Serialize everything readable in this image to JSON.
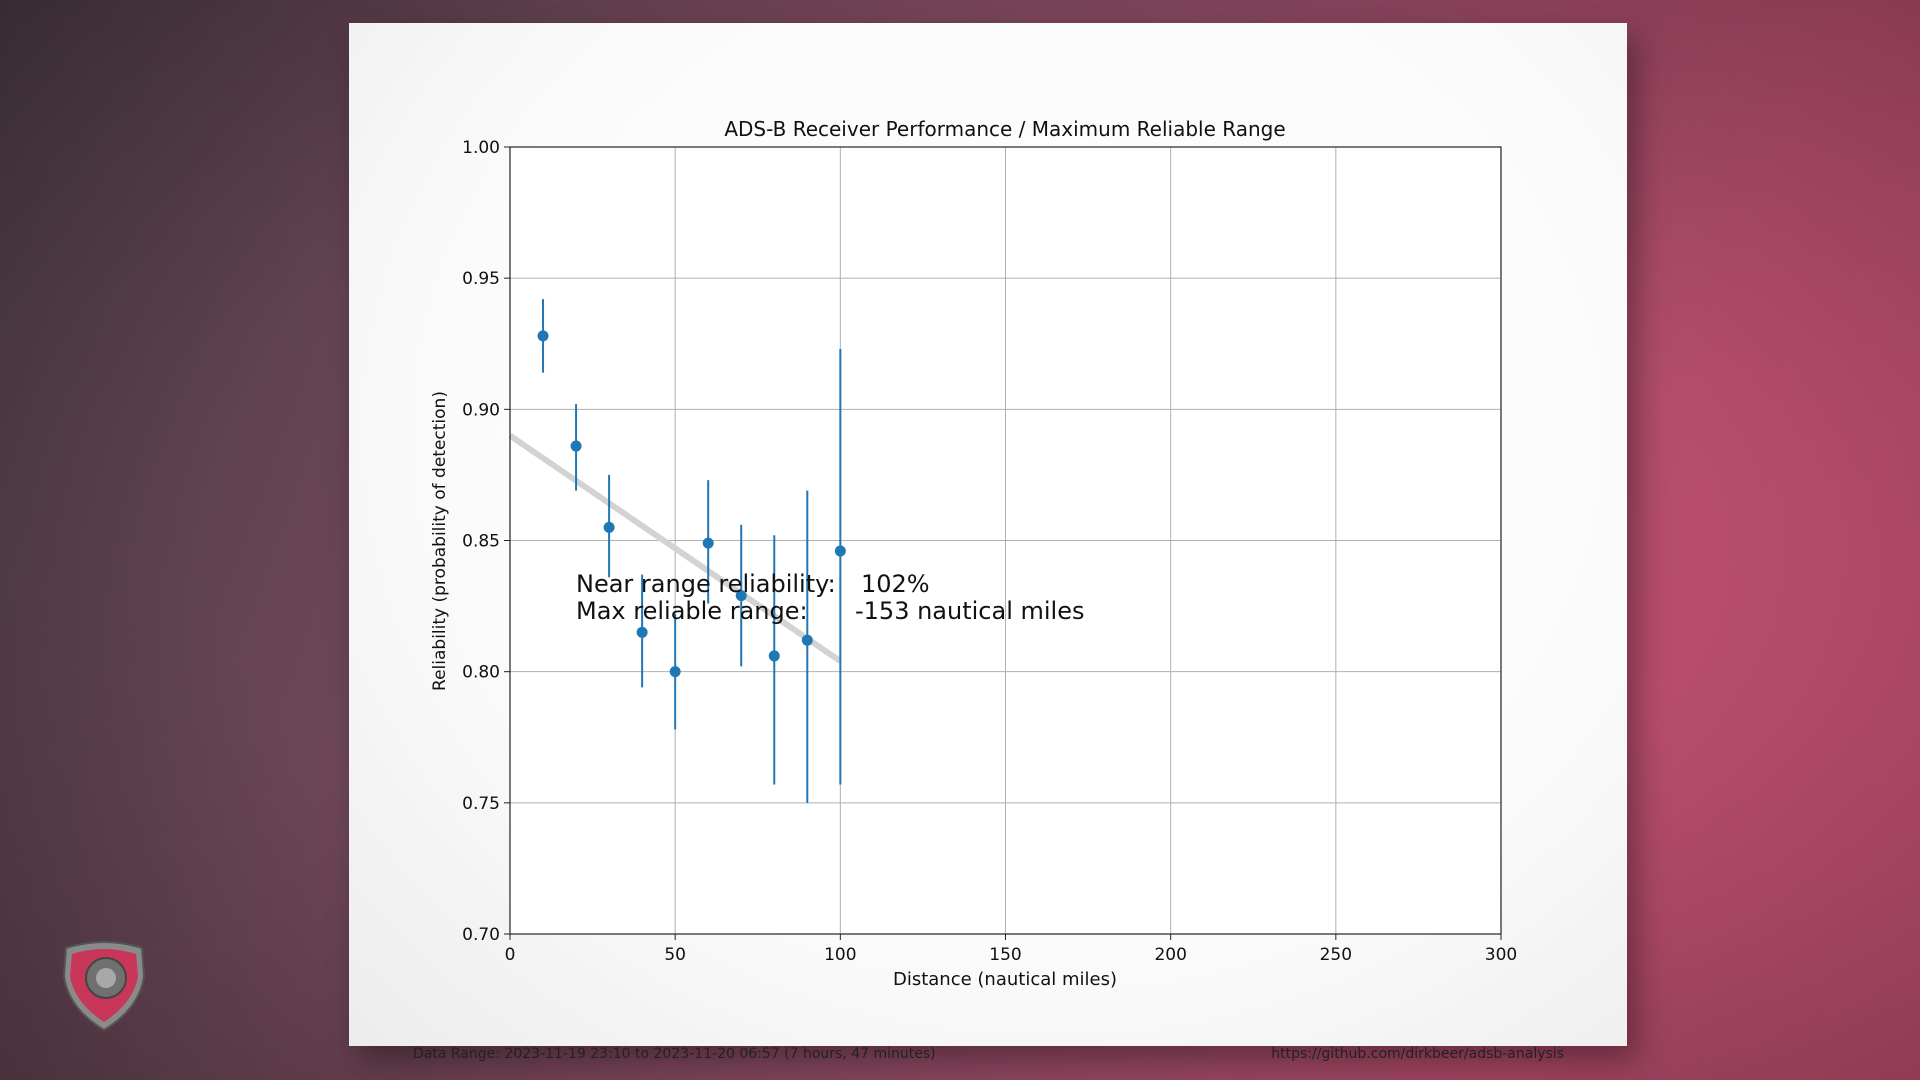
{
  "chart_data": {
    "type": "scatter",
    "title": "ADS-B Receiver Performance / Maximum Reliable Range",
    "xlabel": "Distance (nautical miles)",
    "ylabel": "Reliability (probability of detection)",
    "xlim": [
      0,
      300
    ],
    "ylim": [
      0.7,
      1.0
    ],
    "xticks": [
      "0",
      "50",
      "100",
      "150",
      "200",
      "250",
      "300"
    ],
    "yticks": [
      "0.70",
      "0.75",
      "0.80",
      "0.85",
      "0.90",
      "0.95",
      "1.00"
    ],
    "grid": true,
    "series": [
      {
        "kind": "errorbar",
        "color": "#1f77b4",
        "points": [
          {
            "x": 10,
            "y": 0.928,
            "lo": 0.914,
            "hi": 0.942
          },
          {
            "x": 20,
            "y": 0.886,
            "lo": 0.869,
            "hi": 0.902
          },
          {
            "x": 30,
            "y": 0.855,
            "lo": 0.836,
            "hi": 0.875
          },
          {
            "x": 40,
            "y": 0.815,
            "lo": 0.794,
            "hi": 0.837
          },
          {
            "x": 50,
            "y": 0.8,
            "lo": 0.778,
            "hi": 0.822
          },
          {
            "x": 60,
            "y": 0.849,
            "lo": 0.826,
            "hi": 0.873
          },
          {
            "x": 70,
            "y": 0.829,
            "lo": 0.802,
            "hi": 0.856
          },
          {
            "x": 80,
            "y": 0.806,
            "lo": 0.757,
            "hi": 0.852
          },
          {
            "x": 90,
            "y": 0.812,
            "lo": 0.75,
            "hi": 0.869
          },
          {
            "x": 100,
            "y": 0.846,
            "lo": 0.757,
            "hi": 0.923
          }
        ]
      },
      {
        "kind": "fit-line",
        "color": "#d3d3d3",
        "x": [
          0,
          100
        ],
        "y": [
          0.89,
          0.804
        ]
      }
    ],
    "annotation": {
      "label1": "Near range reliability:",
      "value1": "102%",
      "label2": "Max reliable range:",
      "value2": "-153 nautical miles"
    }
  },
  "footer": {
    "data_range": "Data Range: 2023-11-19 23:10 to 2023-11-20 06:57 (7 hours, 47 minutes)",
    "url": "https://github.com/dirkbeer/adsb-analysis"
  },
  "logo": {
    "icon": "shield-logo-icon",
    "colors": [
      "#707070",
      "#c8365a"
    ]
  }
}
